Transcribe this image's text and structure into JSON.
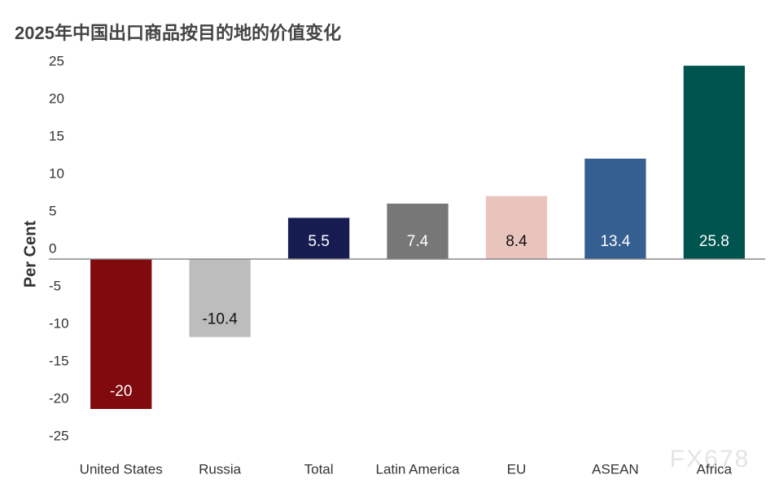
{
  "chart_data": {
    "type": "bar",
    "title": "2025年中国出口商品按目的地的价值变化",
    "y_label": "Per Cent",
    "categories": [
      "United States",
      "Russia",
      "Total",
      "Latin America",
      "EU",
      "ASEAN",
      "Africa"
    ],
    "values": [
      -20,
      -10.4,
      5.5,
      7.4,
      8.4,
      13.4,
      25.8
    ],
    "colors": [
      "#800a0e",
      "#bdbdbd",
      "#161c4f",
      "#777777",
      "#e9c4bd",
      "#355f91",
      "#00544f"
    ],
    "ylim": [
      -27,
      27
    ],
    "yticks": [
      -25,
      -20,
      -15,
      -10,
      -5,
      0,
      5,
      10,
      15,
      20,
      25
    ],
    "grid": false,
    "watermark": "FX678"
  }
}
